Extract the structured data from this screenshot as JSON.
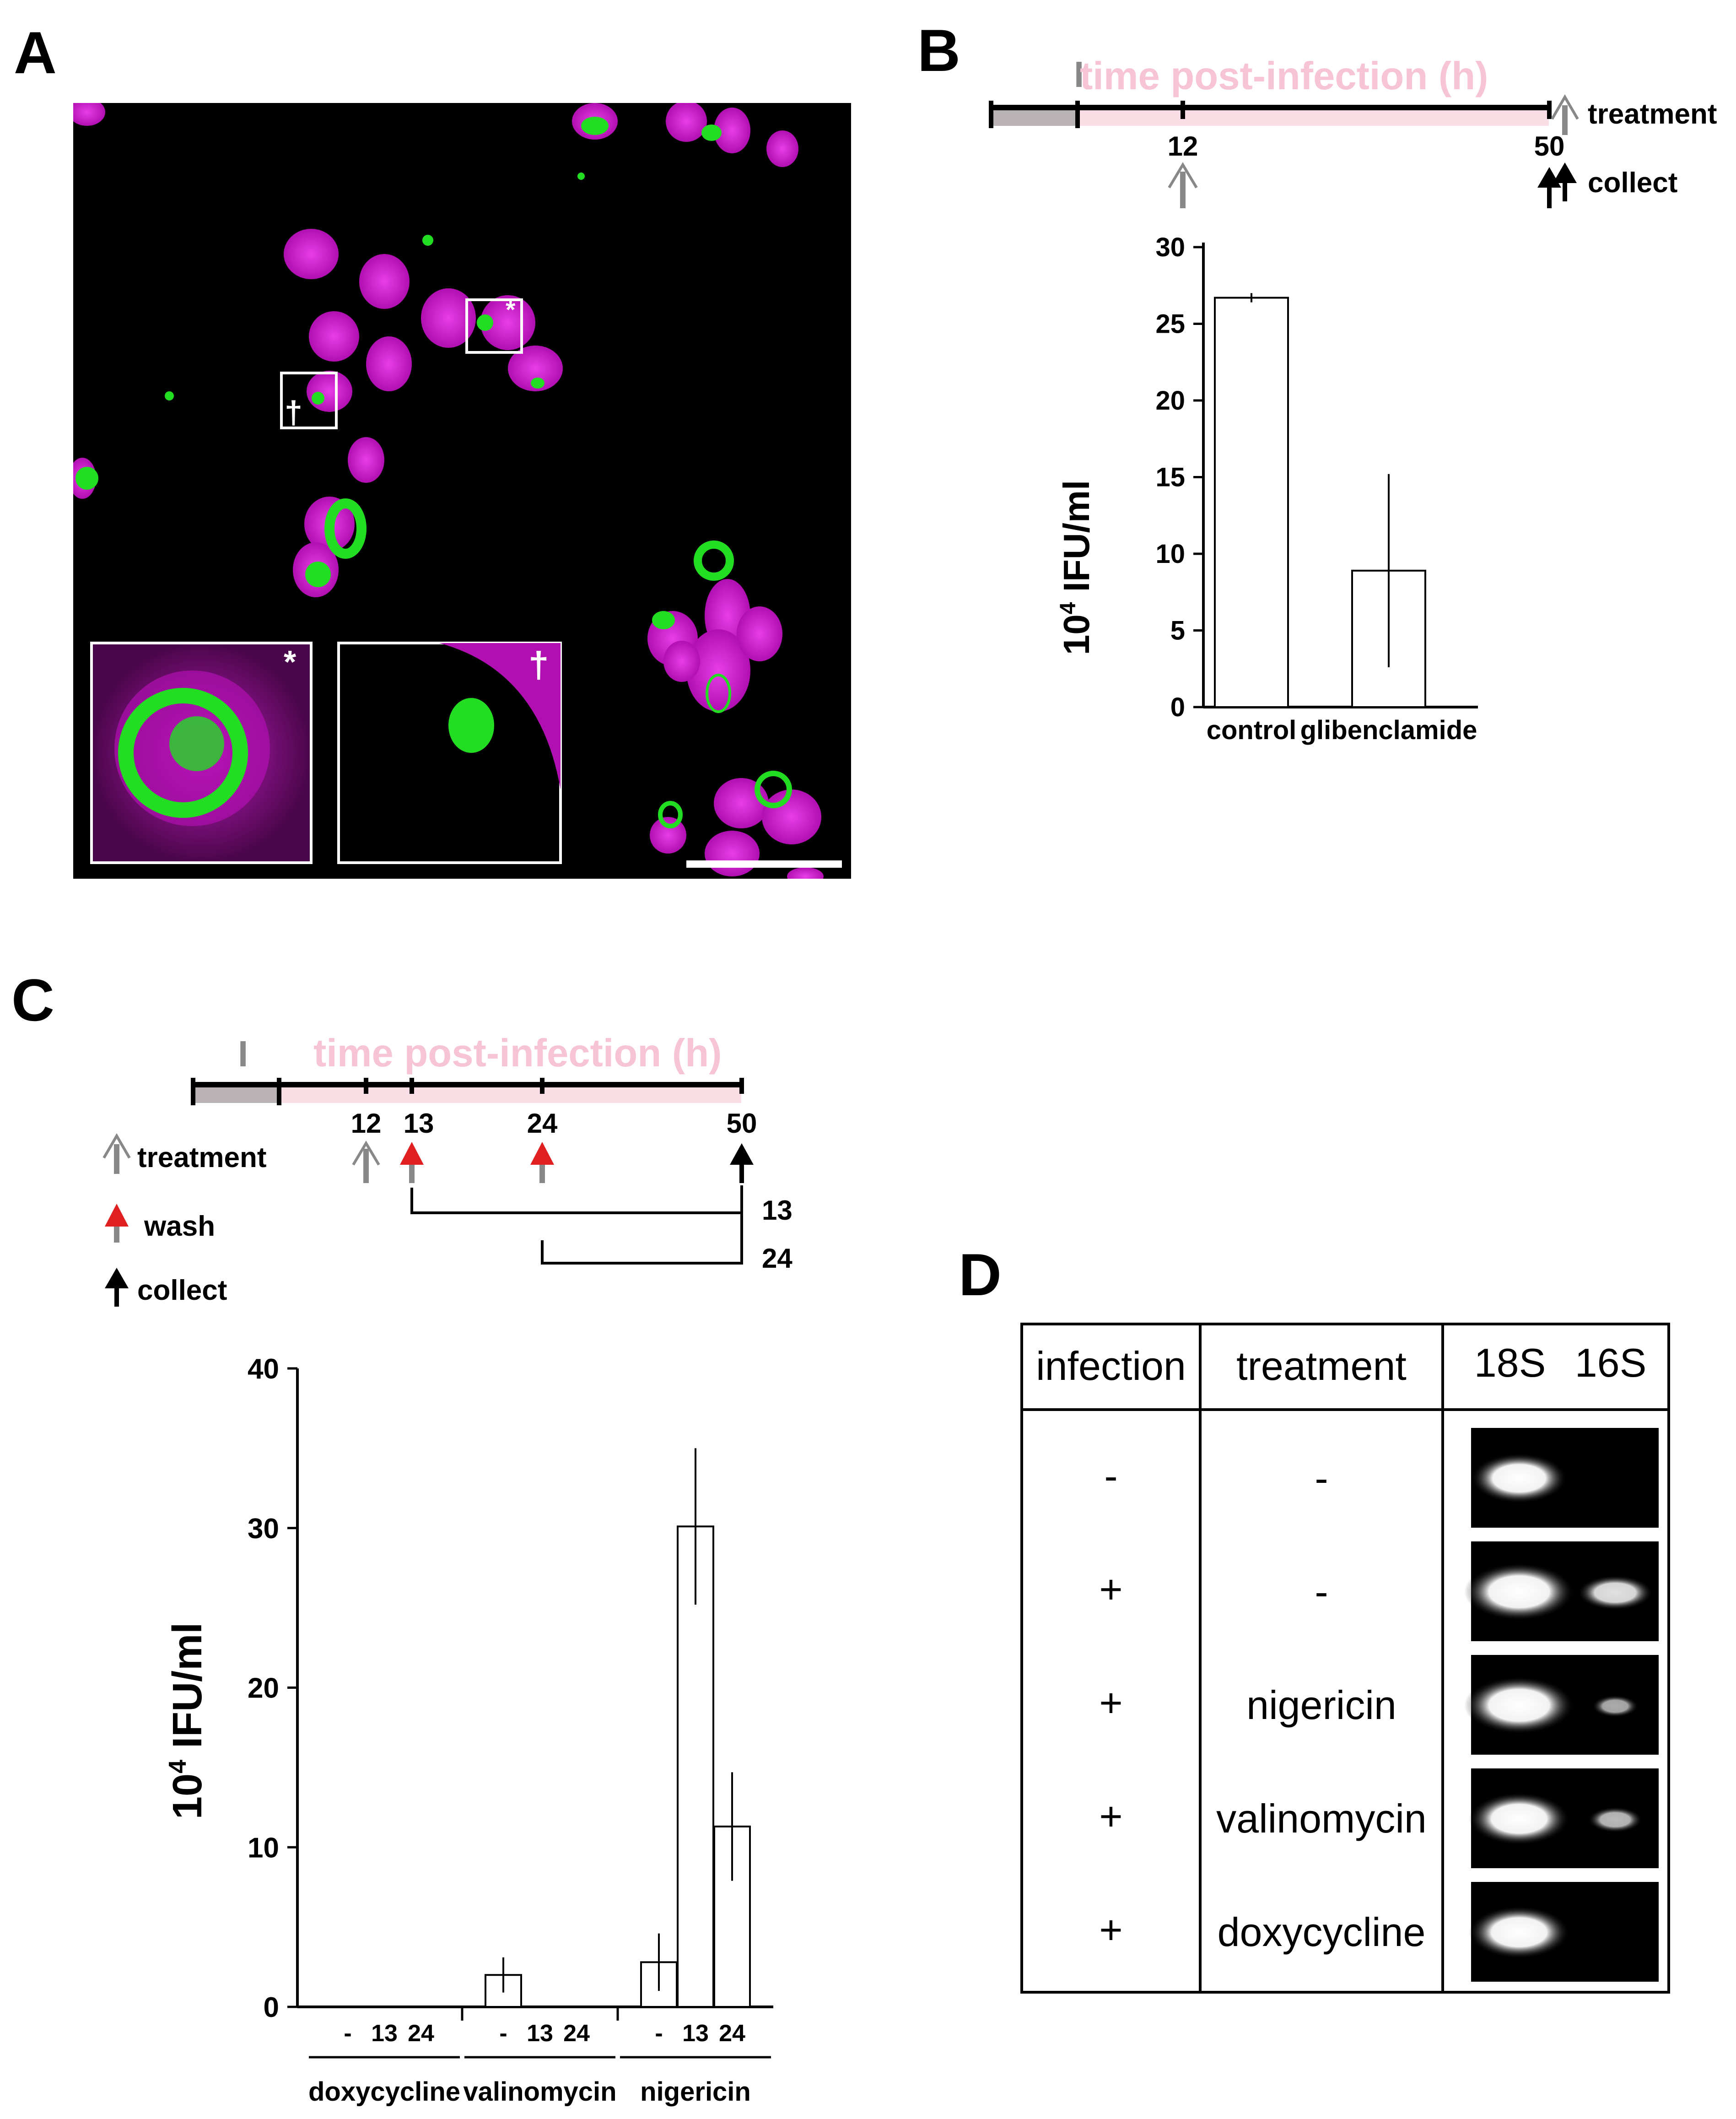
{
  "panels": {
    "a": {
      "letter": "A",
      "markers": {
        "star": "*",
        "dagger": "†"
      },
      "colors": {
        "background": "#000000",
        "nuclei": "#d21fd2",
        "inclusion": "#22dd22",
        "box": "#ffffff"
      }
    },
    "b": {
      "letter": "B",
      "timeline": {
        "title": "time post-infection (h)",
        "infection_mark": "I",
        "ticks": [
          "12",
          "50"
        ]
      },
      "legend": {
        "treatment": "treatment",
        "collect": "collect"
      },
      "chart_data": {
        "type": "bar",
        "categories": [
          "control",
          "glibenclamide"
        ],
        "values": [
          26.7,
          8.9
        ],
        "errors": [
          0.3,
          6.3
        ],
        "ylabel_base": "10",
        "ylabel_exp": "4",
        "ylabel_rest": " IFU/ml",
        "ylim": [
          0,
          30
        ],
        "yticks": [
          "0",
          "5",
          "10",
          "15",
          "20",
          "25",
          "30"
        ]
      }
    },
    "c": {
      "letter": "C",
      "timeline": {
        "title": "time post-infection (h)",
        "infection_mark": "I",
        "ticks": [
          "12",
          "13",
          "24",
          "50"
        ],
        "brackets": [
          "13",
          "24"
        ]
      },
      "legend": {
        "treatment": "treatment",
        "wash": "wash",
        "collect": "collect"
      },
      "chart_data": {
        "type": "bar",
        "groups": [
          "doxycycline",
          "valinomycin",
          "nigericin"
        ],
        "subcategories": [
          "-",
          "13",
          "24"
        ],
        "values": [
          [
            0,
            0,
            0
          ],
          [
            2,
            0,
            0
          ],
          [
            2.8,
            30.1,
            11.3
          ]
        ],
        "errors": [
          [
            0,
            0,
            0
          ],
          [
            1.1,
            0,
            0
          ],
          [
            1.8,
            4.9,
            3.4
          ]
        ],
        "ylabel_base": "10",
        "ylabel_exp": "4",
        "ylabel_rest": " IFU/ml",
        "ylim": [
          0,
          40
        ],
        "yticks": [
          "0",
          "10",
          "20",
          "30",
          "40"
        ]
      }
    },
    "d": {
      "letter": "D",
      "headers": {
        "infection": "infection",
        "treatment": "treatment",
        "band1": "18S",
        "band2": "16S"
      },
      "rows": [
        {
          "infection": "-",
          "treatment": "-",
          "band18s": 0.85,
          "band16s": 0.0
        },
        {
          "infection": "+",
          "treatment": "-",
          "band18s": 1.0,
          "band16s": 0.8
        },
        {
          "infection": "+",
          "treatment": "nigericin",
          "band18s": 1.0,
          "band16s": 0.45
        },
        {
          "infection": "+",
          "treatment": "valinomycin",
          "band18s": 0.9,
          "band16s": 0.55
        },
        {
          "infection": "+",
          "treatment": "doxycycline",
          "band18s": 0.9,
          "band16s": 0.0
        }
      ]
    }
  }
}
